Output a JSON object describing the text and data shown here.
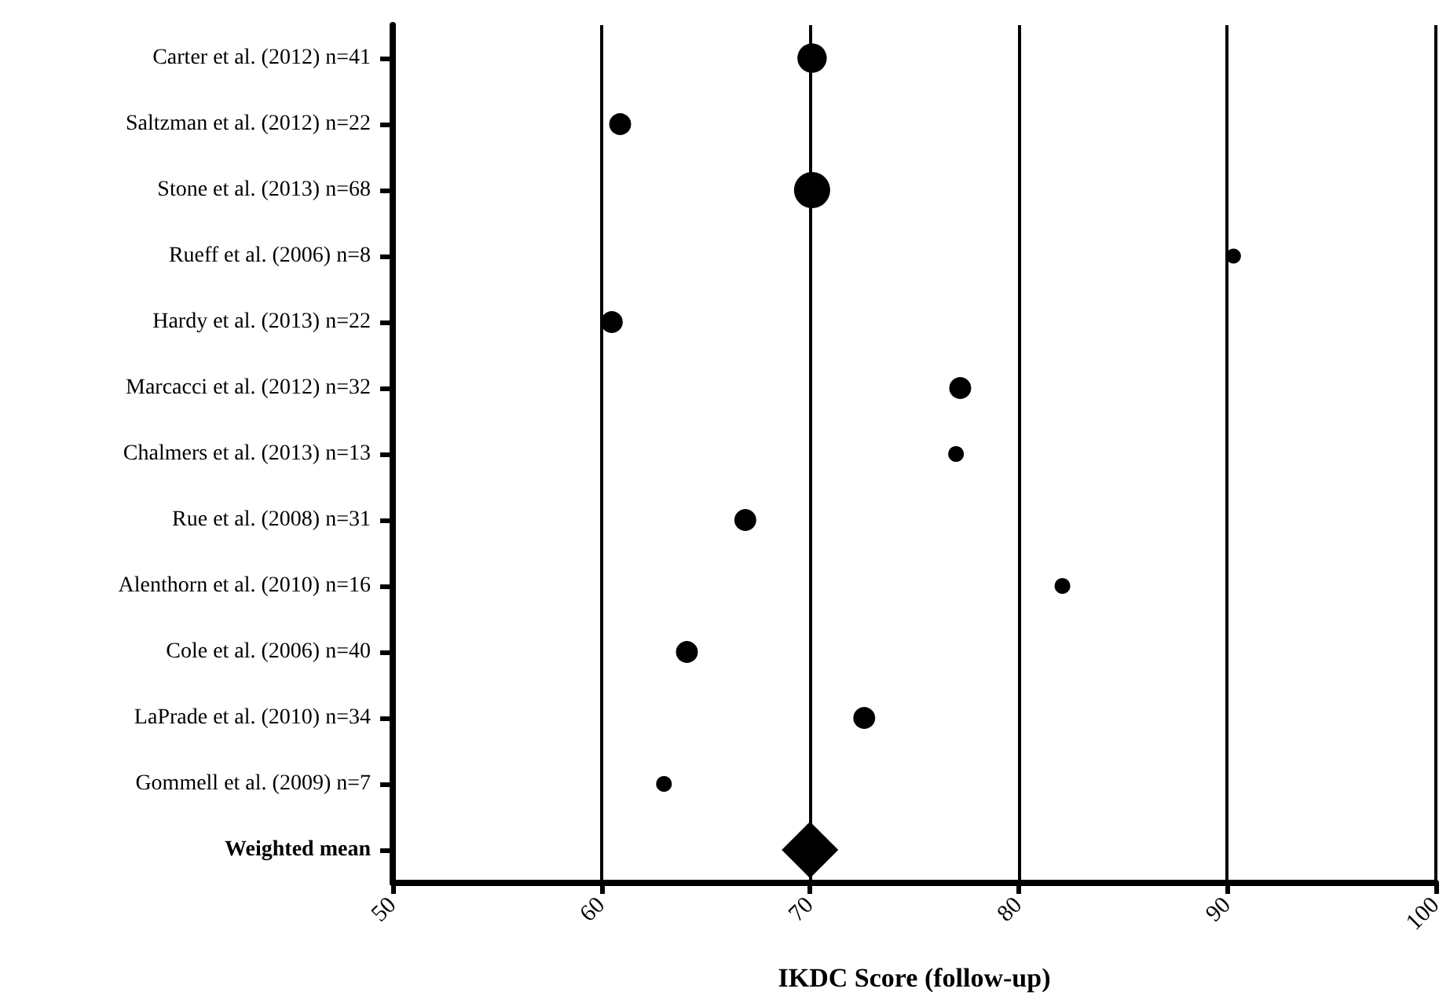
{
  "chart_data": {
    "type": "bubble",
    "orientation": "horizontal",
    "xlabel": "IKDC Score (follow-up)",
    "categories": [
      "Carter et al. (2012) n=41",
      "Saltzman et al. (2012) n=22",
      "Stone et al. (2013) n=68",
      "Rueff et al. (2006) n=8",
      "Hardy et al. (2013) n=22",
      "Marcacci et al. (2012) n=32",
      "Chalmers et al. (2013) n=13",
      "Rue et al. (2008) n=31",
      "Alenthorn et al. (2010) n=16",
      "Cole et al. (2006) n=40",
      "LaPrade et al. (2010) n=34",
      "Gommell et al. (2009) n=7",
      "Weighted mean"
    ],
    "series": [
      {
        "color": "#000000",
        "marker": "circle",
        "values": [
          70.1,
          60.9,
          70.1,
          90.3,
          60.5,
          77.2,
          77.0,
          66.9,
          82.1,
          64.1,
          72.6,
          63.0,
          null
        ],
        "sizes": [
          0.66,
          0.37,
          1,
          0.17,
          0.37,
          0.37,
          0.19,
          0.37,
          0.19,
          0.37,
          0.37,
          0.19,
          null
        ]
      },
      {
        "type": "scatter",
        "color": "#000000",
        "marker": "diamond",
        "values": [
          null,
          null,
          null,
          null,
          null,
          null,
          null,
          null,
          null,
          null,
          null,
          null,
          70.0
        ]
      }
    ],
    "xlim": [
      50,
      100
    ],
    "xticks": [
      50,
      60,
      70,
      80,
      90,
      100
    ],
    "grid": "x"
  }
}
